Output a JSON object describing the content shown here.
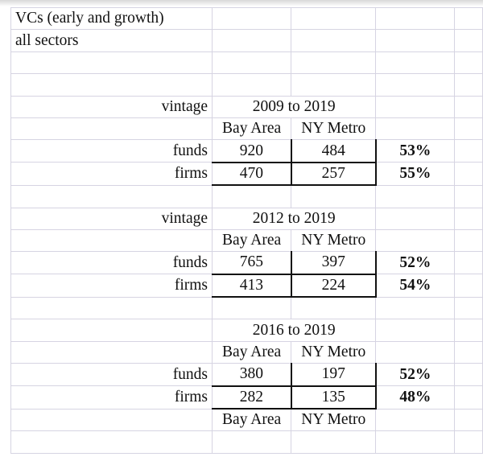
{
  "sheet": {
    "title": "VCs (early and growth)",
    "subtitle": "all sectors",
    "blocks": [
      {
        "vintage_label": "vintage",
        "period": "2009 to 2019",
        "col1": "Bay Area",
        "col2": "NY Metro",
        "rows": [
          {
            "label": "funds",
            "v1": "920",
            "v2": "484",
            "ratio": "53%"
          },
          {
            "label": "firms",
            "v1": "470",
            "v2": "257",
            "ratio": "55%"
          }
        ]
      },
      {
        "vintage_label": "vintage",
        "period": "2012 to 2019",
        "col1": "Bay Area",
        "col2": "NY Metro",
        "rows": [
          {
            "label": "funds",
            "v1": "765",
            "v2": "397",
            "ratio": "52%"
          },
          {
            "label": "firms",
            "v1": "413",
            "v2": "224",
            "ratio": "54%"
          }
        ]
      },
      {
        "vintage_label": "",
        "period": "2016 to 2019",
        "col1": "Bay Area",
        "col2": "NY Metro",
        "rows": [
          {
            "label": "funds",
            "v1": "380",
            "v2": "197",
            "ratio": "52%"
          },
          {
            "label": "firms",
            "v1": "282",
            "v2": "135",
            "ratio": "48%"
          }
        ]
      }
    ],
    "footer_col1": "Bay Area",
    "footer_col2": "NY Metro"
  }
}
